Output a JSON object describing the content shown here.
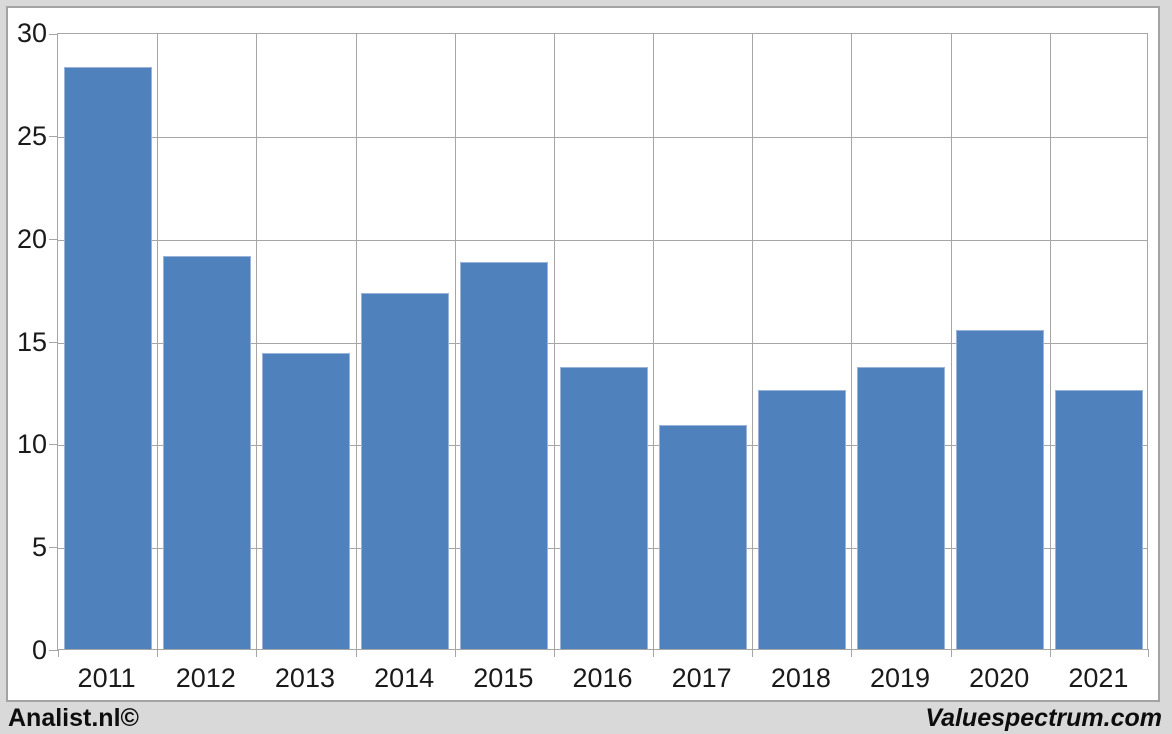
{
  "chart_data": {
    "type": "bar",
    "title": "",
    "xlabel": "",
    "ylabel": "",
    "categories": [
      "2011",
      "2012",
      "2013",
      "2014",
      "2015",
      "2016",
      "2017",
      "2018",
      "2019",
      "2020",
      "2021"
    ],
    "values": [
      28.3,
      19.1,
      14.4,
      17.3,
      18.8,
      13.7,
      10.9,
      12.6,
      13.7,
      15.5,
      12.6
    ],
    "ylim": [
      0,
      30
    ],
    "ytick_step": 5,
    "ytick_labels": [
      "0",
      "5",
      "10",
      "15",
      "20",
      "25",
      "30"
    ],
    "grid": "both",
    "legend_position": "none",
    "bar_color": "#4f81bd",
    "bar_border_color": "#9ab4d9",
    "gridline_color": "#a6a6a6",
    "plot_background": "#ffffff",
    "outer_background": "#d9d9d9",
    "frame_border_color": "#a3a3a3",
    "label_color": "#1a1a1a"
  },
  "footer": {
    "left_label": "Analist.nl©",
    "right_label": "Valuespectrum.com"
  }
}
